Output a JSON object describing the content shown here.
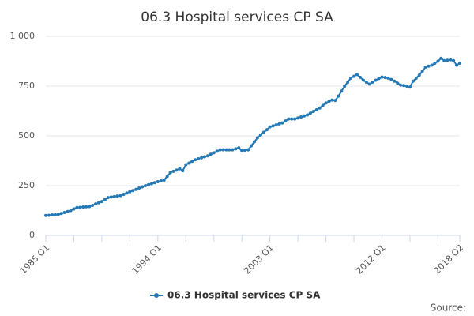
{
  "chart_data": {
    "type": "line",
    "title": "06.3 Hospital services CP SA",
    "categories": [
      "1985 Q1",
      null,
      null,
      null,
      null,
      null,
      null,
      null,
      null,
      null,
      null,
      null,
      null,
      null,
      null,
      null,
      null,
      null,
      null,
      null,
      null,
      null,
      null,
      null,
      null,
      null,
      null,
      null,
      null,
      null,
      null,
      null,
      null,
      null,
      null,
      null,
      "1994 Q1",
      null,
      null,
      null,
      null,
      null,
      null,
      null,
      null,
      null,
      null,
      null,
      null,
      null,
      null,
      null,
      null,
      null,
      null,
      null,
      null,
      null,
      null,
      null,
      null,
      null,
      null,
      null,
      null,
      null,
      null,
      null,
      null,
      null,
      null,
      null,
      "2003 Q1",
      null,
      null,
      null,
      null,
      null,
      null,
      null,
      null,
      null,
      null,
      null,
      null,
      null,
      null,
      null,
      null,
      null,
      null,
      null,
      null,
      null,
      null,
      null,
      null,
      null,
      null,
      null,
      null,
      null,
      null,
      null,
      null,
      null,
      null,
      null,
      "2012 Q1",
      null,
      null,
      null,
      null,
      null,
      null,
      null,
      null,
      null,
      null,
      null,
      null,
      null,
      null,
      null,
      null,
      null,
      null,
      null,
      null,
      null,
      null,
      null,
      null,
      "2018 Q2"
    ],
    "series": [
      {
        "name": "06.3 Hospital services CP SA",
        "color": "#2478b4",
        "values": [
          100,
          101,
          103,
          104,
          105,
          110,
          115,
          120,
          125,
          133,
          140,
          141,
          143,
          144,
          145,
          151,
          158,
          164,
          170,
          180,
          190,
          193,
          195,
          198,
          200,
          206,
          213,
          219,
          225,
          231,
          238,
          244,
          250,
          255,
          260,
          265,
          270,
          274,
          278,
          296,
          315,
          322,
          328,
          335,
          325,
          355,
          363,
          372,
          380,
          385,
          390,
          395,
          400,
          408,
          415,
          423,
          430,
          430,
          430,
          430,
          430,
          435,
          440,
          425,
          428,
          430,
          450,
          470,
          490,
          504,
          518,
          531,
          545,
          550,
          555,
          560,
          565,
          575,
          585,
          585,
          585,
          590,
          595,
          600,
          605,
          614,
          623,
          631,
          640,
          653,
          665,
          673,
          680,
          678,
          700,
          725,
          750,
          770,
          790,
          799,
          808,
          794,
          780,
          770,
          760,
          770,
          780,
          788,
          795,
          793,
          790,
          783,
          775,
          765,
          755,
          753,
          750,
          745,
          775,
          790,
          805,
          825,
          845,
          850,
          855,
          865,
          875,
          890,
          878,
          880,
          882,
          878,
          855,
          865
        ]
      }
    ],
    "ylim": [
      0,
      1000
    ],
    "yticks": [
      0,
      250,
      500,
      750,
      {
        "value": 1000,
        "label": "1 000"
      }
    ],
    "grid": true,
    "legend": "bottom",
    "source": "Source:"
  }
}
